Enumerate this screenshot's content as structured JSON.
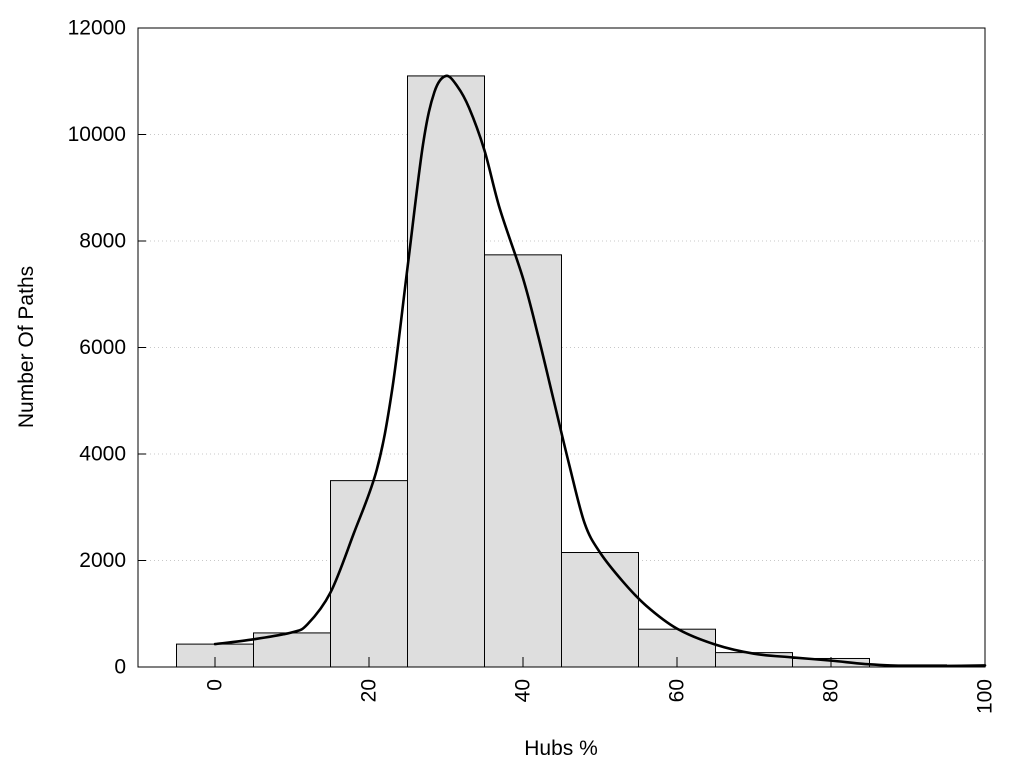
{
  "chart_data": {
    "type": "bar",
    "xlabel": "Hubs %",
    "ylabel": "Number Of Paths",
    "xlim": [
      -10,
      100
    ],
    "ylim": [
      0,
      12000
    ],
    "grid": "horizontal dotted",
    "bin_width": 10,
    "x_ticks": [
      0,
      20,
      40,
      60,
      80,
      100
    ],
    "x_tick_labels": [
      "0",
      "20",
      "40",
      "60",
      "80",
      "100"
    ],
    "y_ticks": [
      0,
      2000,
      4000,
      6000,
      8000,
      10000,
      12000
    ],
    "y_tick_labels": [
      "0",
      "2000",
      "4000",
      "6000",
      "8000",
      "10000",
      "12000"
    ],
    "bars": {
      "centers": [
        0,
        10,
        20,
        30,
        40,
        50,
        60,
        70,
        80,
        90
      ],
      "values": [
        430,
        640,
        3500,
        11100,
        7740,
        2150,
        710,
        270,
        160,
        40
      ],
      "fill": "#dedede",
      "stroke": "#000000"
    },
    "curve": {
      "x": [
        0,
        5,
        10,
        12,
        15,
        18,
        21,
        23,
        25,
        27,
        28.5,
        30,
        31.5,
        33,
        35,
        37,
        40,
        42,
        44,
        46,
        48,
        50,
        53,
        56,
        60,
        65,
        70,
        75,
        80,
        85,
        90,
        95,
        100
      ],
      "y": [
        430,
        520,
        650,
        800,
        1400,
        2500,
        3700,
        5200,
        7500,
        9800,
        10800,
        11100,
        10900,
        10500,
        9700,
        8600,
        7300,
        6200,
        5000,
        3800,
        2700,
        2150,
        1600,
        1150,
        720,
        420,
        250,
        180,
        120,
        50,
        20,
        20,
        30
      ],
      "stroke": "#000000"
    }
  }
}
